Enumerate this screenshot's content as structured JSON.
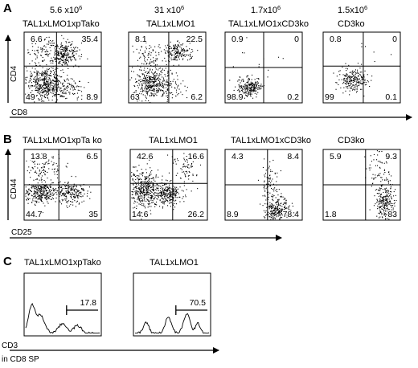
{
  "figure": {
    "panels": [
      {
        "letter": "A",
        "cell_counts": [
          "5.6 x10^6",
          "31 x10^6",
          "1.7x10^6",
          "1.5x10^6"
        ],
        "x_axis_label": "CD8",
        "y_axis_label": "CD4",
        "plots": [
          {
            "title": "TAL1xLMO1xpTako",
            "quadrants": {
              "ul": "6.6",
              "ur": "35.4",
              "ll": "49",
              "lr": "8.9"
            }
          },
          {
            "title": "TAL1xLMO1",
            "quadrants": {
              "ul": "8.1",
              "ur": "22.5",
              "ll": "63",
              "lr": "6.2"
            }
          },
          {
            "title": "TAL1xLMO1xCD3ko",
            "quadrants": {
              "ul": "0.9",
              "ur": "0",
              "ll": "98.9",
              "lr": "0.2"
            }
          },
          {
            "title": "CD3ko",
            "quadrants": {
              "ul": "0.8",
              "ur": "0",
              "ll": "99",
              "lr": "0.1"
            }
          }
        ]
      },
      {
        "letter": "B",
        "x_axis_label": "CD25",
        "y_axis_label": "CD44",
        "plots": [
          {
            "title": "TAL1xLMO1xpTa ko",
            "quadrants": {
              "ul": "13.8",
              "ur": "6.5",
              "ll": "44.7",
              "lr": "35"
            }
          },
          {
            "title": "TAL1xLMO1",
            "quadrants": {
              "ul": "42.6",
              "ur": "16.6",
              "ll": "14.6",
              "lr": "26.2"
            }
          },
          {
            "title": "TAL1xLMO1xCD3ko",
            "quadrants": {
              "ul": "4.3",
              "ur": "8.4",
              "ll": "8.9",
              "lr": "78.4"
            }
          },
          {
            "title": "CD3ko",
            "quadrants": {
              "ul": "5.9",
              "ur": "9.3",
              "ll": "1.8",
              "lr": "83"
            }
          }
        ]
      },
      {
        "letter": "C",
        "x_axis_label_line1": "CD3",
        "x_axis_label_line2": "in CD8 SP",
        "plots": [
          {
            "title": "TAL1xLMO1xpTako",
            "gate_value": "17.8"
          },
          {
            "title": "TAL1xLMO1",
            "gate_value": "70.5"
          }
        ]
      }
    ]
  },
  "chart_data": [
    {
      "type": "scatter",
      "title": "",
      "xlabel": "CD8",
      "ylabel": "CD4",
      "subplots": [
        {
          "name": "TAL1xLMO1xpTako",
          "cell_count": "5.6 x10^6",
          "quadrant_percent": {
            "upper_left": 6.6,
            "upper_right": 35.4,
            "lower_left": 49,
            "lower_right": 8.9
          }
        },
        {
          "name": "TAL1xLMO1",
          "cell_count": "31 x10^6",
          "quadrant_percent": {
            "upper_left": 8.1,
            "upper_right": 22.5,
            "lower_left": 63,
            "lower_right": 6.2
          }
        },
        {
          "name": "TAL1xLMO1xCD3ko",
          "cell_count": "1.7x10^6",
          "quadrant_percent": {
            "upper_left": 0.9,
            "upper_right": 0,
            "lower_left": 98.9,
            "lower_right": 0.2
          }
        },
        {
          "name": "CD3ko",
          "cell_count": "1.5x10^6",
          "quadrant_percent": {
            "upper_left": 0.8,
            "upper_right": 0,
            "lower_left": 99,
            "lower_right": 0.1
          }
        }
      ]
    },
    {
      "type": "scatter",
      "title": "",
      "xlabel": "CD25",
      "ylabel": "CD44",
      "subplots": [
        {
          "name": "TAL1xLMO1xpTa ko",
          "quadrant_percent": {
            "upper_left": 13.8,
            "upper_right": 6.5,
            "lower_left": 44.7,
            "lower_right": 35
          }
        },
        {
          "name": "TAL1xLMO1",
          "quadrant_percent": {
            "upper_left": 42.6,
            "upper_right": 16.6,
            "lower_left": 14.6,
            "lower_right": 26.2
          }
        },
        {
          "name": "TAL1xLMO1xCD3ko",
          "quadrant_percent": {
            "upper_left": 4.3,
            "upper_right": 8.4,
            "lower_left": 8.9,
            "lower_right": 78.4
          }
        },
        {
          "name": "CD3ko",
          "quadrant_percent": {
            "upper_left": 5.9,
            "upper_right": 9.3,
            "lower_left": 1.8,
            "lower_right": 83
          }
        }
      ]
    },
    {
      "type": "area",
      "title": "",
      "xlabel": "CD3 in CD8 SP",
      "ylabel": "",
      "subplots": [
        {
          "name": "TAL1xLMO1xpTako",
          "gated_percent": 17.8
        },
        {
          "name": "TAL1xLMO1",
          "gated_percent": 70.5
        }
      ]
    }
  ]
}
